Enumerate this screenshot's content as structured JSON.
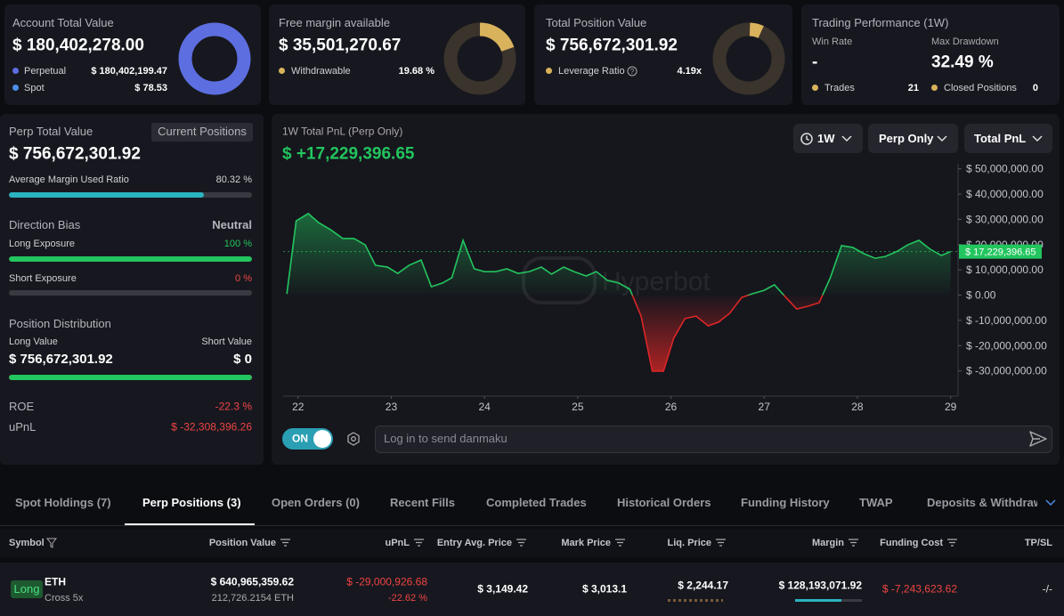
{
  "account": {
    "title": "Account Total Value",
    "value": "$ 180,402,278.00",
    "items": [
      {
        "name": "Perpetual",
        "value": 180402199.47,
        "label": "$ 180,402,199.47",
        "color": "#5d6ee0"
      },
      {
        "name": "Spot",
        "value": 78.53,
        "label": "$ 78.53",
        "color": "#4d8fe6"
      }
    ]
  },
  "free_margin": {
    "title": "Free margin available",
    "value": "$ 35,501,270.67",
    "item": {
      "name": "Withdrawable",
      "value": 19.68,
      "label": "19.68 %",
      "color": "#d9b25c"
    }
  },
  "position": {
    "title": "Total Position Value",
    "value": "$ 756,672,301.92",
    "item": {
      "name": "Leverage Ratio",
      "value": 4.19,
      "label": "4.19x",
      "color": "#d9b25c"
    }
  },
  "performance": {
    "title": "Trading Performance (1W)",
    "win_rate": {
      "name": "Win Rate",
      "value": "-"
    },
    "drawdown": {
      "name": "Max Drawdown",
      "value": "32.49 %"
    },
    "trades": {
      "name": "Trades",
      "value": 21,
      "color": "#d9b25c"
    },
    "closed": {
      "name": "Closed Positions",
      "value": 0,
      "color": "#d9b25c"
    }
  },
  "perp": {
    "title": "Perp Total Value",
    "button": "Current Positions",
    "value": "$ 756,672,301.92",
    "margin": {
      "name": "Average Margin Used Ratio",
      "value": 80.32,
      "label": "80.32 %"
    },
    "bias": {
      "name": "Direction Bias",
      "value": "Neutral"
    },
    "long_exposure": {
      "name": "Long Exposure",
      "value": 100,
      "label": "100 %"
    },
    "short_exposure": {
      "name": "Short Exposure",
      "value": 0,
      "label": "0 %"
    },
    "distribution": {
      "title": "Position Distribution",
      "long": {
        "name": "Long Value",
        "value": 756672301.92,
        "label": "$ 756,672,301.92"
      },
      "short": {
        "name": "Short Value",
        "value": 0,
        "label": "$ 0"
      }
    },
    "roe": {
      "name": "ROE",
      "value": -22.3,
      "label": "-22.3 %"
    },
    "upnl": {
      "name": "uPnL",
      "value": -32308396.26,
      "label": "$ -32,308,396.26"
    }
  },
  "chart_data": {
    "type": "area",
    "title": "1W Total PnL (Perp Only)",
    "subtitle": "$ +17,229,396.65",
    "x": [
      21.88,
      21.98,
      22.11,
      22.22,
      22.35,
      22.48,
      22.6,
      22.72,
      22.83,
      22.96,
      23.07,
      23.19,
      23.32,
      23.43,
      23.55,
      23.65,
      23.77,
      23.89,
      24.0,
      24.12,
      24.24,
      24.36,
      24.48,
      24.61,
      24.72,
      24.85,
      24.96,
      25.09,
      25.2,
      25.32,
      25.44,
      25.56,
      25.68,
      25.8,
      25.92,
      26.03,
      26.15,
      26.27,
      26.4,
      26.51,
      26.63,
      26.76,
      26.87,
      27.0,
      27.11,
      27.24,
      27.35,
      27.47,
      27.59,
      27.71,
      27.83,
      27.95,
      28.07,
      28.19,
      28.3,
      28.43,
      28.54,
      28.66,
      28.78,
      28.9,
      29.0
    ],
    "values": [
      500000,
      29400000,
      32300000,
      28700000,
      25900000,
      22400000,
      22400000,
      19900000,
      11800000,
      11100000,
      8600000,
      11800000,
      13900000,
      3300000,
      4800000,
      6900000,
      21700000,
      10400000,
      9300000,
      9300000,
      10400000,
      8600000,
      9300000,
      11100000,
      8300000,
      11100000,
      9300000,
      7600000,
      9300000,
      5800000,
      4800000,
      2300000,
      -8300000,
      -30100000,
      -30100000,
      -17100000,
      -9300000,
      -8300000,
      -12200000,
      -10700000,
      -7200000,
      -900000,
      500000,
      1900000,
      4100000,
      -1200000,
      -5500000,
      -4400000,
      -3000000,
      6900000,
      19600000,
      18900000,
      16400000,
      14600000,
      15300000,
      17400000,
      19900000,
      21700000,
      18200000,
      15700000,
      17229396.65
    ],
    "xlim": [
      21.84,
      29.08
    ],
    "xticks": [
      22,
      23,
      24,
      25,
      26,
      27,
      28,
      29
    ],
    "ylim": [
      -40000000,
      52000000
    ],
    "yticks": [
      {
        "value": 50000000,
        "label": "$ 50,000,000.00"
      },
      {
        "value": 40000000,
        "label": "$ 40,000,000.00"
      },
      {
        "value": 30000000,
        "label": "$ 30,000,000.00"
      },
      {
        "value": 20000000,
        "label": "$ 20,000,000.00"
      },
      {
        "value": 10000000,
        "label": "$ 10,000,000.00"
      },
      {
        "value": 0,
        "label": "$ 0.00"
      },
      {
        "value": -10000000,
        "label": "$ -10,000,000.00"
      },
      {
        "value": -20000000,
        "label": "$ -20,000,000.00"
      },
      {
        "value": -30000000,
        "label": "$ -30,000,000.00"
      }
    ],
    "color": "#22c55e",
    "negative_color": "#dc2626",
    "grid": false,
    "current": {
      "value": 17229396.65,
      "label": "$ 17,229,396.65"
    },
    "watermark": "Hyperbot"
  },
  "controls": {
    "period": "1W",
    "scope": "Perp Only",
    "metric": "Total PnL",
    "toggle": "ON",
    "placeholder": "Log in to send danmaku"
  },
  "tabs": [
    "Spot Holdings (7)",
    "Perp Positions (3)",
    "Open Orders (0)",
    "Recent Fills",
    "Completed Trades",
    "Historical Orders",
    "Funding History",
    "TWAP",
    "Deposits & Withdrawals"
  ],
  "active_tab": 1,
  "table": {
    "headers": [
      "Symbol",
      "Position Value",
      "uPnL",
      "Entry Avg. Price",
      "Mark Price",
      "Liq. Price",
      "Margin",
      "Funding Cost",
      "TP/SL"
    ],
    "rows": [
      {
        "side": "Long",
        "symbol": "ETH",
        "margin_mode": "Cross 5x",
        "position_value": "$ 640,965,359.62",
        "size": "212,726.2154 ETH",
        "upnl": "$ -29,000,926.68",
        "upnl_pct": "-22.62 %",
        "entry": "$ 3,149.42",
        "mark": "$ 3,013.1",
        "liq": "$ 2,244.17",
        "margin": "$ 128,193,071.92",
        "funding": "$ -7,243,623.62",
        "tpsl": "-/-"
      }
    ]
  }
}
